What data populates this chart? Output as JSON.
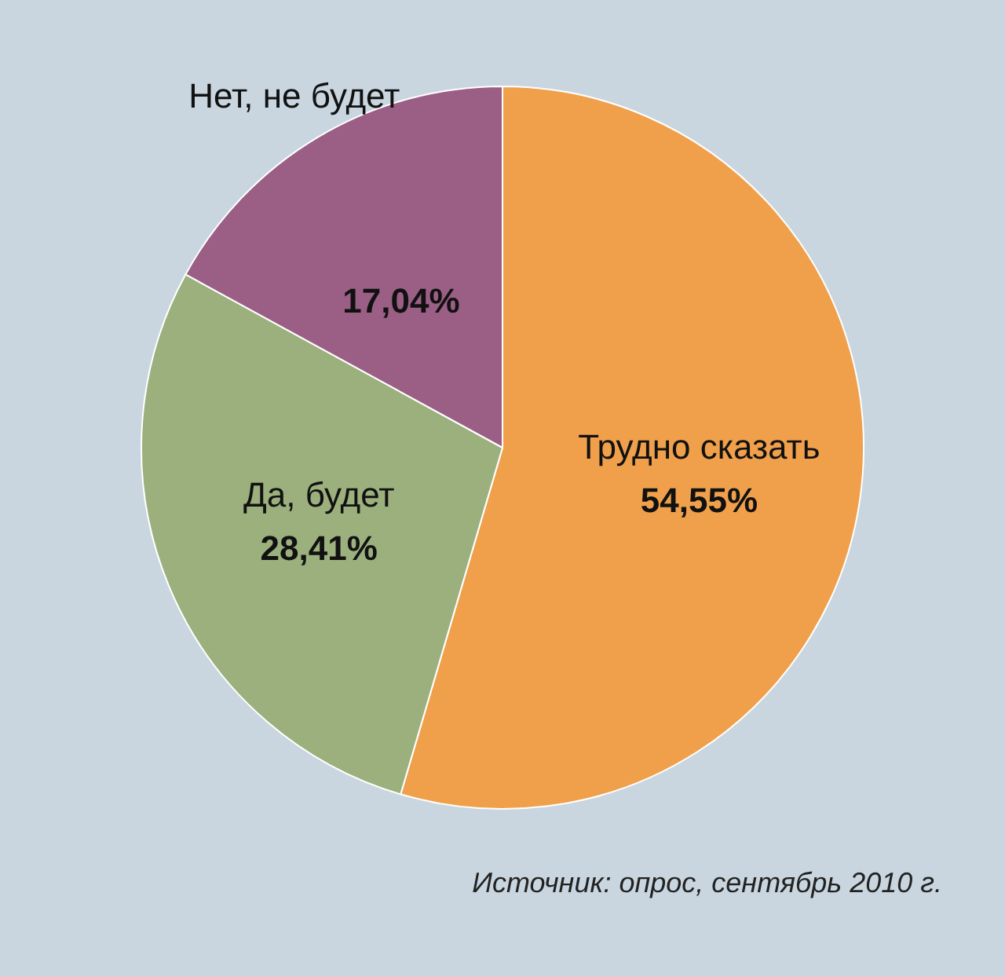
{
  "chart_data": {
    "type": "pie",
    "categories": [
      "Трудно сказать",
      "Да, будет",
      "Нет, не будет"
    ],
    "values": [
      54.55,
      28.41,
      17.04
    ],
    "colors": [
      "#f0a04b",
      "#9cb07e",
      "#9b5f86"
    ],
    "value_labels": [
      "54,55%",
      "28,41%",
      "17,04%"
    ],
    "annotations": [
      "Источник: опрос, сентябрь 2010 г."
    ]
  }
}
